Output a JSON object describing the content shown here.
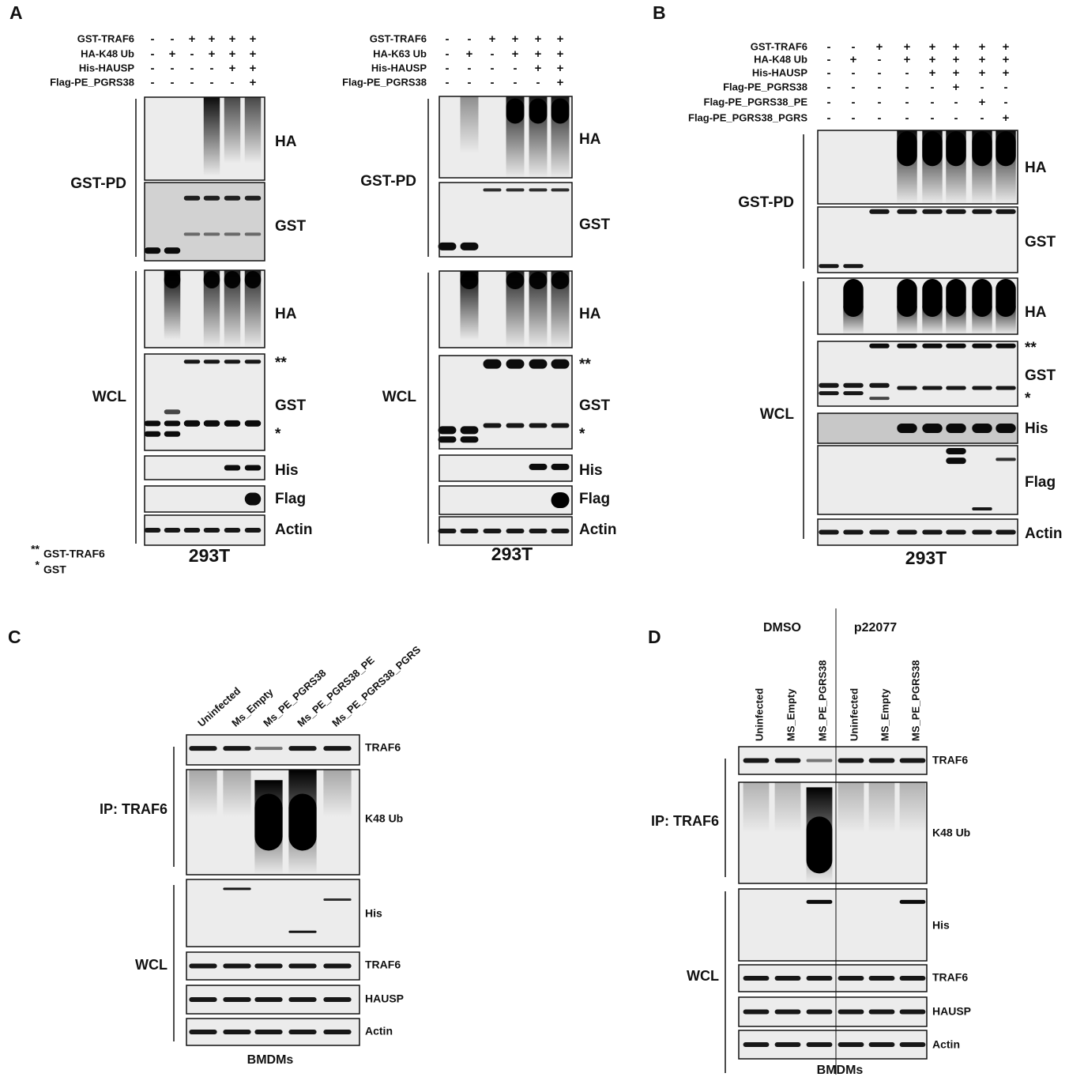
{
  "panels": [
    {
      "letter": "A",
      "blots": [
        {
          "conditions": [
            {
              "label": "GST-TRAF6",
              "signs": [
                "-",
                "-",
                "+",
                "+",
                "+",
                "+"
              ]
            },
            {
              "label": "HA-K48 Ub",
              "signs": [
                "-",
                "+",
                "-",
                "+",
                "+",
                "+"
              ]
            },
            {
              "label": "His-HAUSP",
              "signs": [
                "-",
                "-",
                "-",
                "-",
                "+",
                "+"
              ]
            },
            {
              "label": "Flag-PE_PGRS38",
              "signs": [
                "-",
                "-",
                "-",
                "-",
                "-",
                "+"
              ]
            }
          ],
          "groups": [
            "GST-PD",
            "WCL"
          ],
          "bands": [
            "HA",
            "GST",
            "HA",
            "**",
            "GST",
            "*",
            "His",
            "Flag",
            "Actin"
          ],
          "cell": "293T"
        },
        {
          "conditions": [
            {
              "label": "GST-TRAF6",
              "signs": [
                "-",
                "-",
                "+",
                "+",
                "+",
                "+"
              ]
            },
            {
              "label": "HA-K63 Ub",
              "signs": [
                "-",
                "+",
                "-",
                "+",
                "+",
                "+"
              ]
            },
            {
              "label": "His-HAUSP",
              "signs": [
                "-",
                "-",
                "-",
                "-",
                "+",
                "+"
              ]
            },
            {
              "label": "Flag-PE_PGRS38",
              "signs": [
                "-",
                "-",
                "-",
                "-",
                "-",
                "+"
              ]
            }
          ],
          "groups": [
            "GST-PD",
            "WCL"
          ],
          "bands": [
            "HA",
            "GST",
            "HA",
            "**",
            "GST",
            "*",
            "His",
            "Flag",
            "Actin"
          ],
          "cell": "293T"
        }
      ],
      "footnote": [
        {
          "mark": "**",
          "label": "GST-TRAF6"
        },
        {
          "mark": "*",
          "label": "GST"
        }
      ]
    },
    {
      "letter": "B",
      "blots": [
        {
          "conditions": [
            {
              "label": "GST-TRAF6",
              "signs": [
                "-",
                "-",
                "+",
                "+",
                "+",
                "+",
                "+",
                "+"
              ]
            },
            {
              "label": "HA-K48 Ub",
              "signs": [
                "-",
                "+",
                "-",
                "+",
                "+",
                "+",
                "+",
                "+"
              ]
            },
            {
              "label": "His-HAUSP",
              "signs": [
                "-",
                "-",
                "-",
                "-",
                "+",
                "+",
                "+",
                "+"
              ]
            },
            {
              "label": "Flag-PE_PGRS38",
              "signs": [
                "-",
                "-",
                "-",
                "-",
                "-",
                "+",
                "-",
                "-"
              ]
            },
            {
              "label": "Flag-PE_PGRS38_PE",
              "signs": [
                "-",
                "-",
                "-",
                "-",
                "-",
                "-",
                "+",
                "-"
              ]
            },
            {
              "label": "Flag-PE_PGRS38_PGRS",
              "signs": [
                "-",
                "-",
                "-",
                "-",
                "-",
                "-",
                "-",
                "+"
              ]
            }
          ],
          "groups": [
            "GST-PD",
            "WCL"
          ],
          "bands": [
            "HA",
            "GST",
            "HA",
            "**",
            "GST",
            "*",
            "His",
            "Flag",
            "Actin"
          ],
          "cell": "293T"
        }
      ]
    },
    {
      "letter": "C",
      "blots": [
        {
          "lanes": [
            "Uninfected",
            "Ms_Empty",
            "Ms_PE_PGRS38",
            "Ms_PE_PGRS38_PE",
            "Ms_PE_PGRS38_PGRS"
          ],
          "groups": [
            "IP: TRAF6",
            "WCL"
          ],
          "bands": [
            "TRAF6",
            "K48 Ub",
            "His",
            "TRAF6",
            "HAUSP",
            "Actin"
          ],
          "cell": "BMDMs"
        }
      ]
    },
    {
      "letter": "D",
      "blots": [
        {
          "treatments": [
            "DMSO",
            "p22077"
          ],
          "lanes": [
            "Uninfected",
            "MS_Empty",
            "MS_PE_PGRS38",
            "Uninfected",
            "MS_Empty",
            "MS_PE_PGRS38"
          ],
          "groups": [
            "IP: TRAF6",
            "WCL"
          ],
          "bands": [
            "TRAF6",
            "K48 Ub",
            "His",
            "TRAF6",
            "HAUSP",
            "Actin"
          ],
          "cell": "BMDMs"
        }
      ]
    }
  ]
}
